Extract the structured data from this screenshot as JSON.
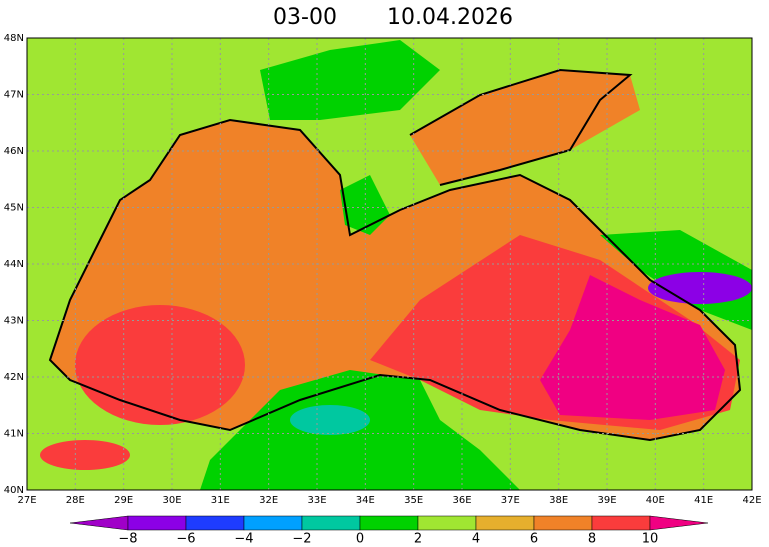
{
  "header": {
    "time": "03-00",
    "date": "10.04.2026"
  },
  "map": {
    "lat_labels": [
      "48N",
      "47N",
      "46N",
      "45N",
      "44N",
      "43N",
      "42N",
      "41N",
      "40N"
    ],
    "lon_labels": [
      "27E",
      "28E",
      "29E",
      "30E",
      "31E",
      "32E",
      "33E",
      "34E",
      "35E",
      "36E",
      "37E",
      "38E",
      "39E",
      "40E",
      "41E",
      "42E"
    ]
  },
  "colorbar": {
    "labels": [
      "−8",
      "−6",
      "−4",
      "−2",
      "0",
      "2",
      "4",
      "6",
      "8",
      "10"
    ],
    "colors": [
      "#a000c8",
      "#8c00e6",
      "#1e3cff",
      "#00a0ff",
      "#00c8a0",
      "#00d200",
      "#a0e632",
      "#e6af2d",
      "#f08228",
      "#fa3c3c",
      "#f00082"
    ]
  }
}
